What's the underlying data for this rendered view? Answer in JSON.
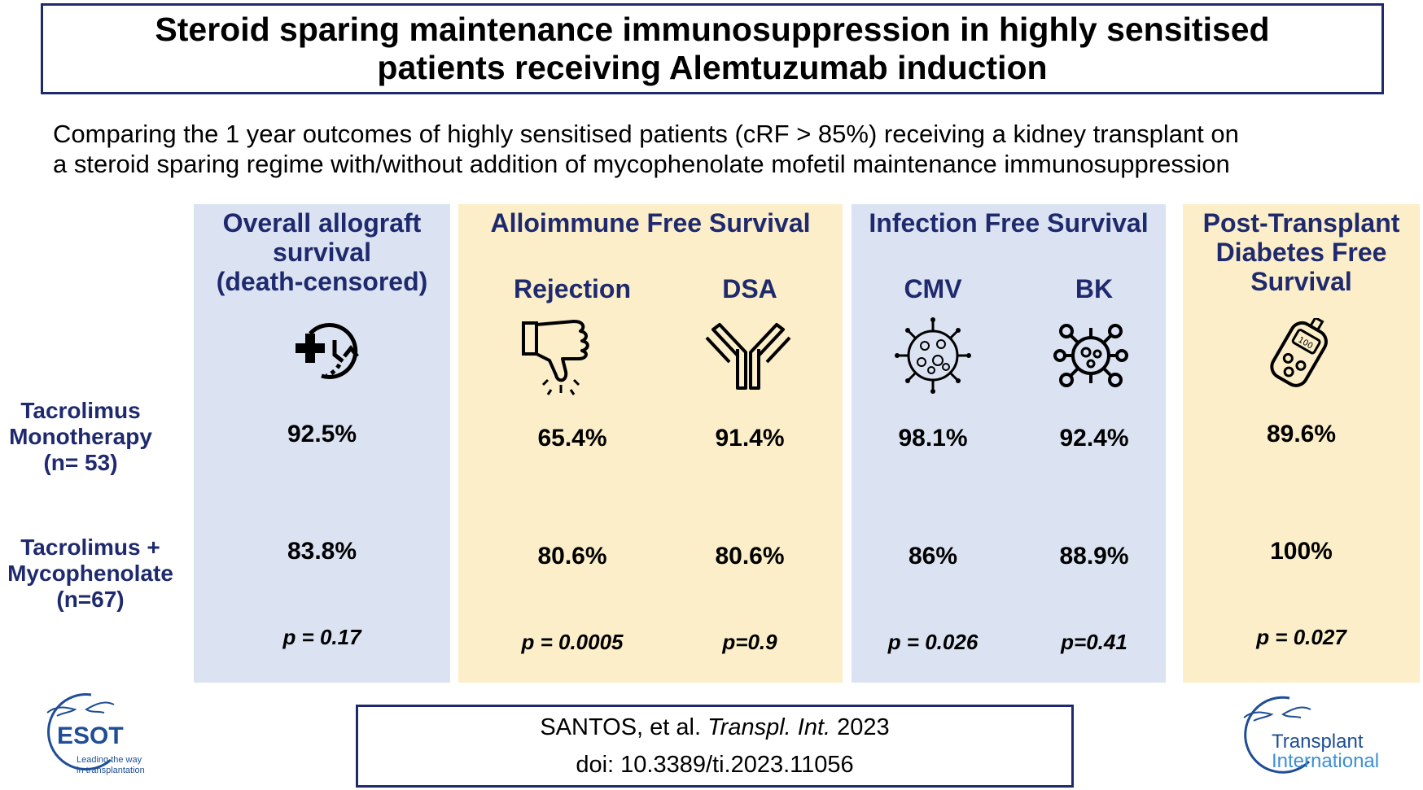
{
  "title": {
    "line1": "Steroid sparing maintenance immunosuppression in highly sensitised",
    "line2": "patients receiving Alemtuzumab induction"
  },
  "subtitle": {
    "line1": "Comparing the 1 year outcomes of highly sensitised patients (cRF > 85%) receiving a kidney transplant on",
    "line2": "a steroid sparing regime with/without addition of mycophenolate mofetil maintenance immunosuppression"
  },
  "rows": {
    "mono": {
      "line1": "Tacrolimus",
      "line2": "Monotherapy",
      "line3": "(n= 53)"
    },
    "combo": {
      "line1": "Tacrolimus +",
      "line2": "Mycophenolate",
      "line3": "(n=67)"
    }
  },
  "panels": {
    "allograft": {
      "header_line1": "Overall allograft",
      "header_line2": "survival",
      "header_line3": "(death-censored)",
      "icon": "medical-clock-icon",
      "mono": "92.5%",
      "combo": "83.8%",
      "p": "p = 0.17"
    },
    "alloimmune": {
      "header": "Alloimmune Free Survival",
      "rejection": {
        "label": "Rejection",
        "icon": "thumbs-down-icon",
        "mono": "65.4%",
        "combo": "80.6%",
        "p": "p = 0.0005"
      },
      "dsa": {
        "label": "DSA",
        "icon": "antibody-icon",
        "mono": "91.4%",
        "combo": "80.6%",
        "p": "p=0.9"
      }
    },
    "infection": {
      "header": "Infection Free Survival",
      "cmv": {
        "label": "CMV",
        "icon": "virus-icon",
        "mono": "98.1%",
        "combo": "86%",
        "p": "p = 0.026"
      },
      "bk": {
        "label": "BK",
        "icon": "bk-virus-icon",
        "mono": "92.4%",
        "combo": "88.9%",
        "p": "p=0.41"
      }
    },
    "diabetes": {
      "header_line1": "Post-Transplant",
      "header_line2": "Diabetes Free",
      "header_line3": "Survival",
      "icon": "glucose-meter-icon",
      "mono": "89.6%",
      "combo": "100%",
      "p": "p = 0.027"
    }
  },
  "citation": {
    "authors": "SANTOS, et al.",
    "journal": "Transpl. Int.",
    "year": "2023",
    "doi": "doi: 10.3389/ti.2023.11056"
  },
  "logos": {
    "esot_name": "ESOT",
    "esot_tag1": "Leading the way",
    "esot_tag2": "in transplantation",
    "ti_line1": "Transplant",
    "ti_line2": "International"
  },
  "colors": {
    "navy": "#1f2a6e",
    "blue_panel": "#dbe3f2",
    "yellow_panel": "#fbeec8",
    "logo_blue": "#1f4e96",
    "logo_light": "#3c8fd4"
  }
}
